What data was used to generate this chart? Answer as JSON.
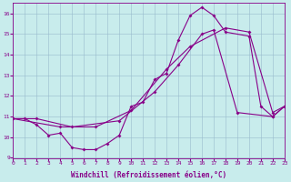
{
  "xlabel": "Windchill (Refroidissement éolien,°C)",
  "xlim": [
    0,
    23
  ],
  "ylim": [
    9,
    16.5
  ],
  "yticks": [
    9,
    10,
    11,
    12,
    13,
    14,
    15,
    16
  ],
  "xticks": [
    0,
    1,
    2,
    3,
    4,
    5,
    6,
    7,
    8,
    9,
    10,
    11,
    12,
    13,
    14,
    15,
    16,
    17,
    18,
    19,
    20,
    21,
    22,
    23
  ],
  "bg_color": "#c8ecec",
  "line_color": "#880088",
  "grid_color": "#99bbcc",
  "line1_x": [
    0,
    1,
    2,
    3,
    4,
    5,
    6,
    7,
    8,
    9,
    10,
    11,
    12,
    13,
    14,
    15,
    16,
    17,
    18,
    20,
    21,
    22,
    23
  ],
  "line1_y": [
    10.9,
    10.9,
    10.6,
    10.1,
    10.2,
    9.5,
    9.4,
    9.4,
    9.7,
    10.1,
    11.5,
    11.7,
    12.8,
    13.1,
    14.7,
    15.9,
    16.3,
    15.9,
    15.1,
    14.9,
    11.5,
    11.0,
    11.5
  ],
  "line2_x": [
    0,
    2,
    5,
    9,
    12,
    14,
    16,
    17,
    19,
    22,
    23
  ],
  "line2_y": [
    10.9,
    10.9,
    10.5,
    10.8,
    12.2,
    13.5,
    15.0,
    15.2,
    11.2,
    11.0,
    11.5
  ],
  "line3_x": [
    0,
    4,
    7,
    10,
    13,
    15,
    18,
    20,
    22,
    23
  ],
  "line3_y": [
    10.9,
    10.5,
    10.5,
    11.3,
    13.3,
    14.4,
    15.3,
    15.1,
    11.2,
    11.5
  ]
}
